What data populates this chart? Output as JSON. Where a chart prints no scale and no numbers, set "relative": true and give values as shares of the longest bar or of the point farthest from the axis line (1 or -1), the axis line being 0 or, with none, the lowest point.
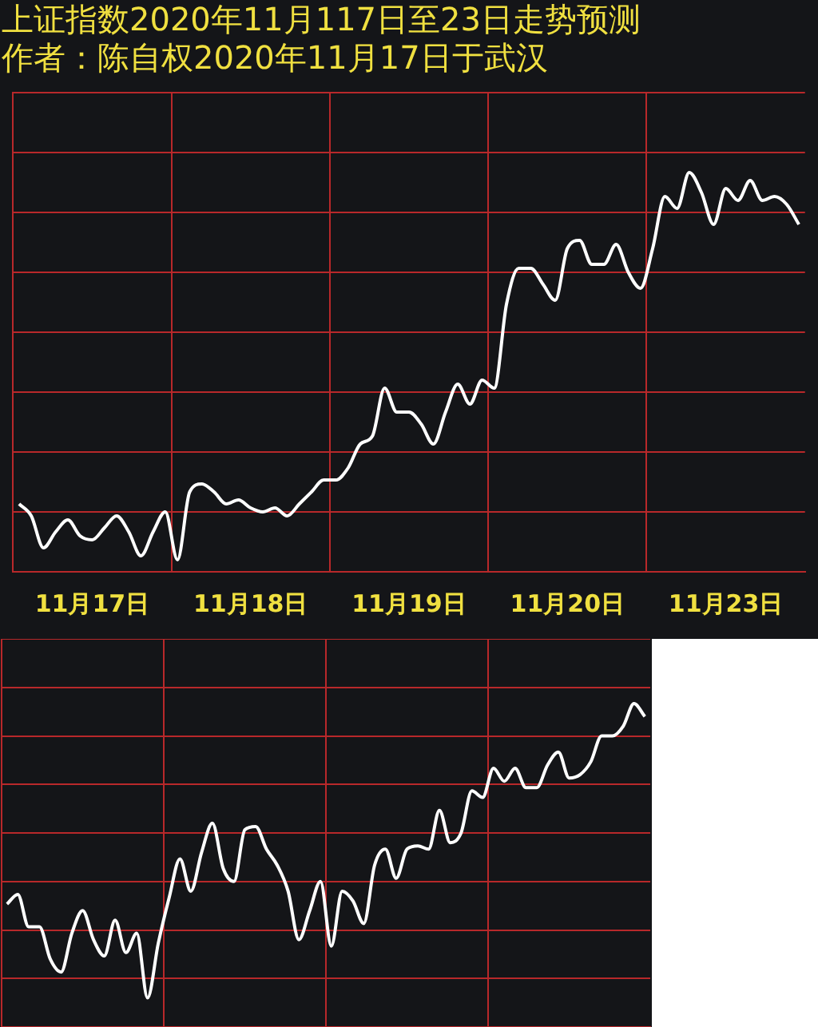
{
  "chart_data": [
    {
      "type": "line",
      "title": "上证指数2020年11月117日至23日走势预测",
      "subtitle": "作者：陈自权2020年11月17日于武汉",
      "relative": true,
      "grid": true,
      "categories": [
        null,
        null,
        null,
        null,
        null,
        null,
        "11月17日",
        null,
        null,
        null,
        null,
        null,
        null,
        null,
        null,
        null,
        null,
        null,
        null,
        "11月18日",
        null,
        null,
        null,
        null,
        null,
        null,
        null,
        null,
        null,
        null,
        null,
        null,
        "11月19日",
        null,
        null,
        null,
        null,
        null,
        null,
        null,
        null,
        null,
        null,
        null,
        null,
        "11月20日",
        null,
        null,
        null,
        null,
        null,
        null,
        null,
        null,
        null,
        null,
        null,
        null,
        "11月23日",
        null,
        null,
        null,
        null,
        null,
        null
      ],
      "series": [
        {
          "color": "#ffffff",
          "values": [
            0.17,
            0.14,
            0.06,
            0.1,
            0.13,
            0.09,
            0.08,
            0.11,
            0.14,
            0.1,
            0.04,
            0.1,
            0.15,
            0.03,
            0.2,
            0.22,
            0.2,
            0.17,
            0.18,
            0.16,
            0.15,
            0.16,
            0.14,
            0.17,
            0.2,
            0.23,
            0.23,
            0.26,
            0.32,
            0.34,
            0.46,
            0.4,
            0.4,
            0.37,
            0.32,
            0.4,
            0.47,
            0.42,
            0.48,
            0.46,
            0.67,
            0.76,
            0.76,
            0.72,
            0.68,
            0.81,
            0.83,
            0.77,
            0.77,
            0.82,
            0.75,
            0.71,
            0.81,
            0.94,
            0.91,
            1,
            0.95,
            0.87,
            0.96,
            0.93,
            0.98,
            0.93,
            0.94,
            0.92,
            0.87
          ]
        }
      ]
    },
    {
      "type": "line",
      "relative": true,
      "grid": true,
      "categories": [
        null,
        null,
        null,
        null,
        null,
        null,
        null,
        null,
        null,
        null,
        null,
        null,
        null,
        null,
        null,
        null,
        null,
        null,
        null,
        null,
        null,
        null,
        null,
        null,
        null,
        null,
        null,
        null,
        null,
        null,
        null,
        null,
        null,
        null,
        null,
        null,
        null,
        null,
        null,
        null,
        null,
        null,
        null,
        null,
        null,
        null,
        null,
        null,
        null,
        null,
        null,
        null,
        null,
        null,
        null,
        null,
        null,
        null,
        null,
        null
      ],
      "series": [
        {
          "color": "#ffffff",
          "values": [
            0.38,
            0.41,
            0.31,
            0.31,
            0.21,
            0.17,
            0.29,
            0.36,
            0.27,
            0.22,
            0.33,
            0.23,
            0.29,
            0.09,
            0.26,
            0.4,
            0.52,
            0.42,
            0.54,
            0.63,
            0.49,
            0.45,
            0.61,
            0.62,
            0.55,
            0.5,
            0.42,
            0.27,
            0.36,
            0.45,
            0.25,
            0.42,
            0.39,
            0.32,
            0.5,
            0.55,
            0.46,
            0.55,
            0.56,
            0.55,
            0.67,
            0.57,
            0.6,
            0.73,
            0.71,
            0.8,
            0.76,
            0.8,
            0.74,
            0.74,
            0.81,
            0.85,
            0.77,
            0.78,
            0.82,
            0.9,
            0.9,
            0.93,
            1,
            0.96
          ]
        }
      ]
    }
  ]
}
